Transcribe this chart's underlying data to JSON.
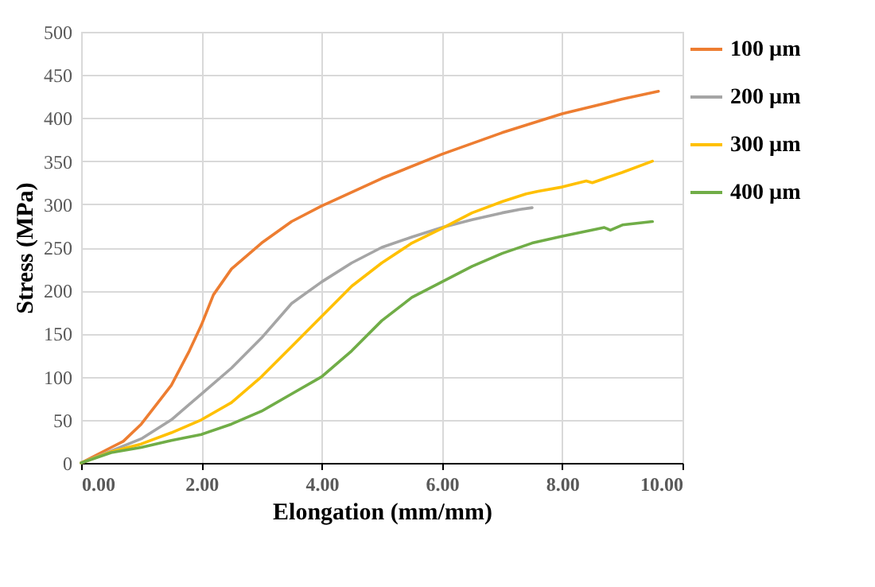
{
  "chart_data": {
    "type": "line",
    "xlabel": "Elongation (mm/mm)",
    "ylabel": "Stress (MPa)",
    "xlim": [
      0,
      10
    ],
    "xticks": [
      {
        "value": 0,
        "label": "0.00"
      },
      {
        "value": 2,
        "label": "2.00"
      },
      {
        "value": 4,
        "label": "4.00"
      },
      {
        "value": 6,
        "label": "6.00"
      },
      {
        "value": 8,
        "label": "8.00"
      },
      {
        "value": 10,
        "label": "10.00"
      }
    ],
    "ylim": [
      0,
      500
    ],
    "yticks": [
      0,
      50,
      100,
      150,
      200,
      250,
      300,
      350,
      400,
      450,
      500
    ],
    "grid": true,
    "legend": "right",
    "marker": "none",
    "line_style": "solid",
    "series": [
      {
        "name": "100 µm",
        "color": "#ed7d31",
        "x": [
          0,
          0.5,
          0.7,
          1.0,
          1.5,
          1.8,
          2.0,
          2.2,
          2.5,
          3.0,
          3.5,
          4.0,
          5.0,
          6.0,
          7.0,
          8.0,
          9.0,
          9.6
        ],
        "values": [
          0,
          18,
          25,
          45,
          90,
          130,
          160,
          195,
          225,
          255,
          280,
          298,
          330,
          358,
          383,
          405,
          422,
          431
        ]
      },
      {
        "name": "200 µm",
        "color": "#a5a5a5",
        "x": [
          0,
          0.5,
          1.0,
          1.5,
          2.0,
          2.5,
          3.0,
          3.5,
          4.0,
          4.5,
          5.0,
          5.5,
          6.0,
          6.5,
          7.0,
          7.3,
          7.5
        ],
        "values": [
          0,
          14,
          28,
          50,
          80,
          110,
          145,
          185,
          210,
          232,
          250,
          262,
          273,
          282,
          290,
          294,
          296
        ]
      },
      {
        "name": "300 µm",
        "color": "#ffc000",
        "x": [
          0,
          0.5,
          1.0,
          1.5,
          2.0,
          2.5,
          3.0,
          3.5,
          4.0,
          4.5,
          5.0,
          5.5,
          6.0,
          6.5,
          7.0,
          7.4,
          7.6,
          8.0,
          8.4,
          8.5,
          9.0,
          9.5
        ],
        "values": [
          0,
          13,
          22,
          35,
          50,
          70,
          100,
          135,
          170,
          205,
          232,
          255,
          272,
          290,
          303,
          312,
          315,
          320,
          327,
          325,
          337,
          350
        ]
      },
      {
        "name": "400 µm",
        "color": "#70ad47",
        "x": [
          0,
          0.5,
          1.0,
          1.5,
          2.0,
          2.5,
          3.0,
          3.5,
          4.0,
          4.5,
          5.0,
          5.5,
          6.0,
          6.5,
          7.0,
          7.5,
          8.0,
          8.7,
          8.8,
          9.0,
          9.5
        ],
        "values": [
          0,
          12,
          18,
          26,
          33,
          45,
          60,
          80,
          100,
          130,
          165,
          192,
          210,
          228,
          243,
          255,
          263,
          273,
          270,
          276,
          280
        ]
      }
    ]
  }
}
